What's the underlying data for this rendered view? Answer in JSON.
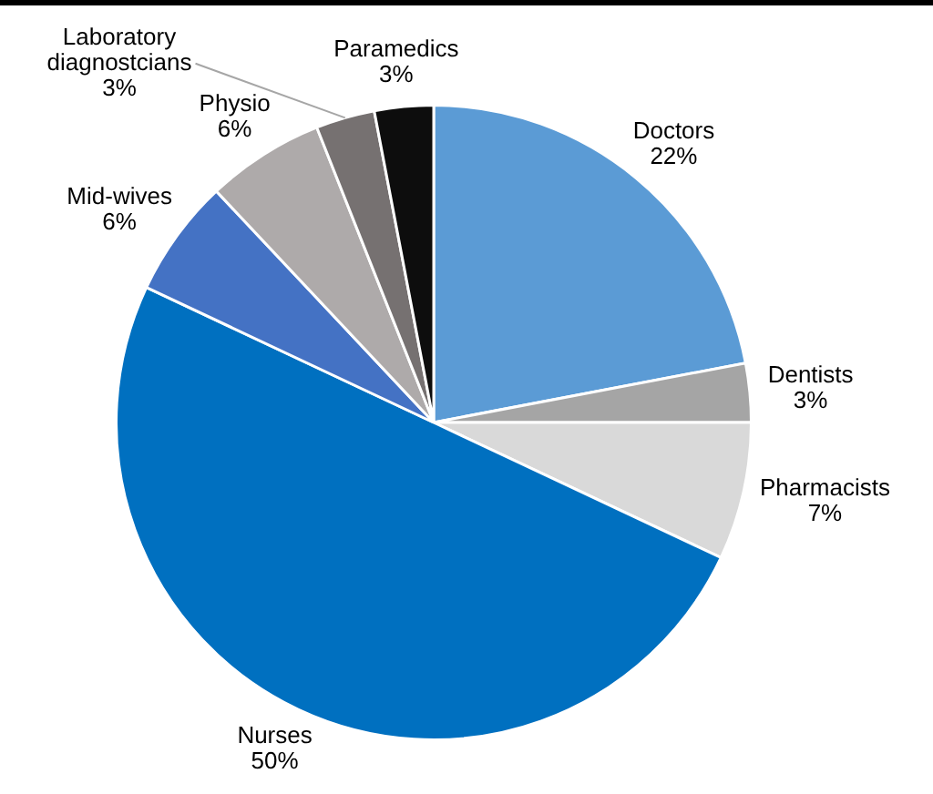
{
  "chart_data": {
    "type": "pie",
    "categories": [
      "Doctors",
      "Dentists",
      "Pharmacists",
      "Nurses",
      "Mid-wives",
      "Physio",
      "Laboratory diagnostcians",
      "Paramedics"
    ],
    "values": [
      22,
      3,
      7,
      50,
      6,
      6,
      3,
      3
    ],
    "colors": [
      "#5b9bd5",
      "#a5a5a5",
      "#d9d9d9",
      "#0070c0",
      "#4472c4",
      "#aeaaaa",
      "#767171",
      "#0d0d0d"
    ],
    "value_labels": [
      "22%",
      "3%",
      "7%",
      "50%",
      "6%",
      "6%",
      "3%",
      "3%"
    ],
    "legend": false
  }
}
